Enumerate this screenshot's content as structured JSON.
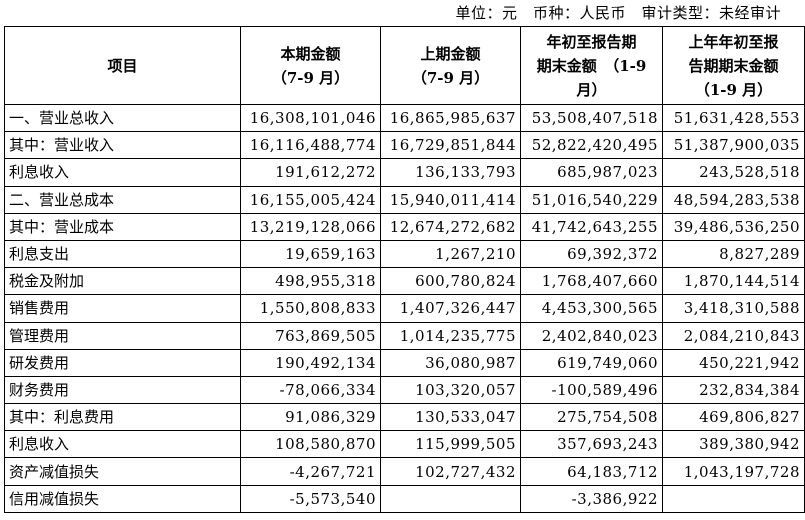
{
  "unit_line": "单位：元　币种：人民币　审计类型：未经审计",
  "table": {
    "headers": [
      "项目",
      "本期金额\n（7-9 月）",
      "上期金额\n（7-9 月）",
      "年初至报告期\n期末金额　（1-9\n月）",
      "上年年初至报\n告期期末金额\n（1-9 月）"
    ],
    "rows": [
      {
        "label": "一、营业总收入",
        "indent": 0,
        "values": [
          "16,308,101,046",
          "16,865,985,637",
          "53,508,407,518",
          "51,631,428,553"
        ]
      },
      {
        "label": "其中：营业收入",
        "indent": 0,
        "values": [
          "16,116,488,774",
          "16,729,851,844",
          "52,822,420,495",
          "51,387,900,035"
        ]
      },
      {
        "label": "利息收入",
        "indent": 1,
        "values": [
          "191,612,272",
          "136,133,793",
          "685,987,023",
          "243,528,518"
        ]
      },
      {
        "label": "二、营业总成本",
        "indent": 0,
        "values": [
          "16,155,005,424",
          "15,940,011,414",
          "51,016,540,229",
          "48,594,283,538"
        ]
      },
      {
        "label": "其中：营业成本",
        "indent": 0,
        "values": [
          "13,219,128,066",
          "12,674,272,682",
          "41,742,643,255",
          "39,486,536,250"
        ]
      },
      {
        "label": "利息支出",
        "indent": 1,
        "values": [
          "19,659,163",
          "1,267,210",
          "69,392,372",
          "8,827,289"
        ]
      },
      {
        "label": "税金及附加",
        "indent": 1,
        "values": [
          "498,955,318",
          "600,780,824",
          "1,768,407,660",
          "1,870,144,514"
        ]
      },
      {
        "label": "销售费用",
        "indent": 1,
        "values": [
          "1,550,808,833",
          "1,407,326,447",
          "4,453,300,565",
          "3,418,310,588"
        ]
      },
      {
        "label": "管理费用",
        "indent": 1,
        "values": [
          "763,869,505",
          "1,014,235,775",
          "2,402,840,023",
          "2,084,210,843"
        ]
      },
      {
        "label": "研发费用",
        "indent": 1,
        "values": [
          "190,492,134",
          "36,080,987",
          "619,749,060",
          "450,221,942"
        ]
      },
      {
        "label": "财务费用",
        "indent": 1,
        "values": [
          "-78,066,334",
          "103,320,057",
          "-100,589,496",
          "232,834,384"
        ]
      },
      {
        "label": "其中：利息费用",
        "indent": 2,
        "values": [
          "91,086,329",
          "130,533,047",
          "275,754,508",
          "469,806,827"
        ]
      },
      {
        "label": "利息收入",
        "indent": 3,
        "values": [
          "108,580,870",
          "115,999,505",
          "357,693,243",
          "389,380,942"
        ]
      },
      {
        "label": "资产减值损失",
        "indent": 1,
        "values": [
          "-4,267,721",
          "102,727,432",
          "64,183,712",
          "1,043,197,728"
        ]
      },
      {
        "label": "信用减值损失",
        "indent": 1,
        "values": [
          "-5,573,540",
          "",
          "-3,386,922",
          ""
        ]
      }
    ]
  }
}
